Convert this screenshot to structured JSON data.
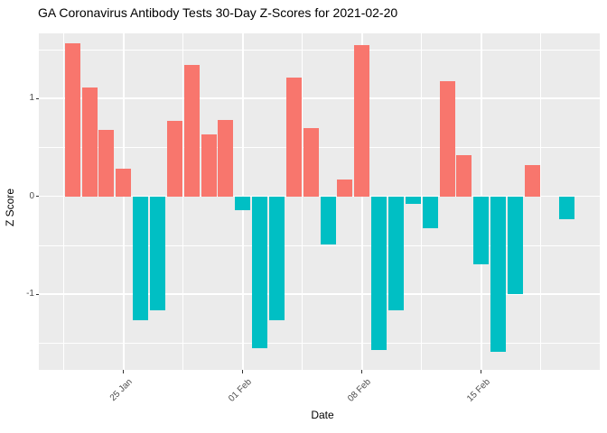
{
  "chart_data": {
    "type": "bar",
    "title": "GA Coronavirus Antibody Tests 30-Day Z-Scores for 2021-02-20",
    "xlabel": "Date",
    "ylabel": "Z Score",
    "dates": [
      "2021-01-22",
      "2021-01-23",
      "2021-01-24",
      "2021-01-25",
      "2021-01-26",
      "2021-01-27",
      "2021-01-28",
      "2021-01-29",
      "2021-01-30",
      "2021-01-31",
      "2021-02-01",
      "2021-02-02",
      "2021-02-03",
      "2021-02-04",
      "2021-02-05",
      "2021-02-06",
      "2021-02-07",
      "2021-02-08",
      "2021-02-09",
      "2021-02-10",
      "2021-02-11",
      "2021-02-12",
      "2021-02-13",
      "2021-02-14",
      "2021-02-15",
      "2021-02-16",
      "2021-02-17",
      "2021-02-18",
      "2021-02-19",
      "2021-02-20"
    ],
    "values": [
      1.56,
      1.11,
      0.68,
      0.28,
      -1.27,
      -1.16,
      0.77,
      1.34,
      0.63,
      0.78,
      -0.14,
      -1.55,
      -1.27,
      1.21,
      0.7,
      -0.49,
      0.17,
      1.55,
      -1.57,
      -1.16,
      -0.08,
      -0.33,
      1.18,
      0.42,
      -0.69,
      -1.59,
      -1.0,
      0.32,
      0.0,
      -0.23
    ],
    "x_ticks": [
      {
        "label": "25 Jan",
        "date": "2021-01-25"
      },
      {
        "label": "01 Feb",
        "date": "2021-02-01"
      },
      {
        "label": "08 Feb",
        "date": "2021-02-08"
      },
      {
        "label": "15 Feb",
        "date": "2021-02-15"
      }
    ],
    "y_ticks": [
      {
        "label": "1",
        "value": 1
      },
      {
        "label": "0",
        "value": 0
      },
      {
        "label": "-1",
        "value": -1
      }
    ],
    "y_minor": [
      1.5,
      0.5,
      -0.5,
      -1.5
    ],
    "ylim": [
      -1.77,
      1.67
    ],
    "grid": true,
    "legend": "none",
    "colors": {
      "positive": "#F8766D",
      "negative": "#00BFC4",
      "panel_bg": "#EBEBEB",
      "gridline": "#FFFFFF",
      "tick_text": "#4D4D4D",
      "title_text": "#000000"
    }
  }
}
